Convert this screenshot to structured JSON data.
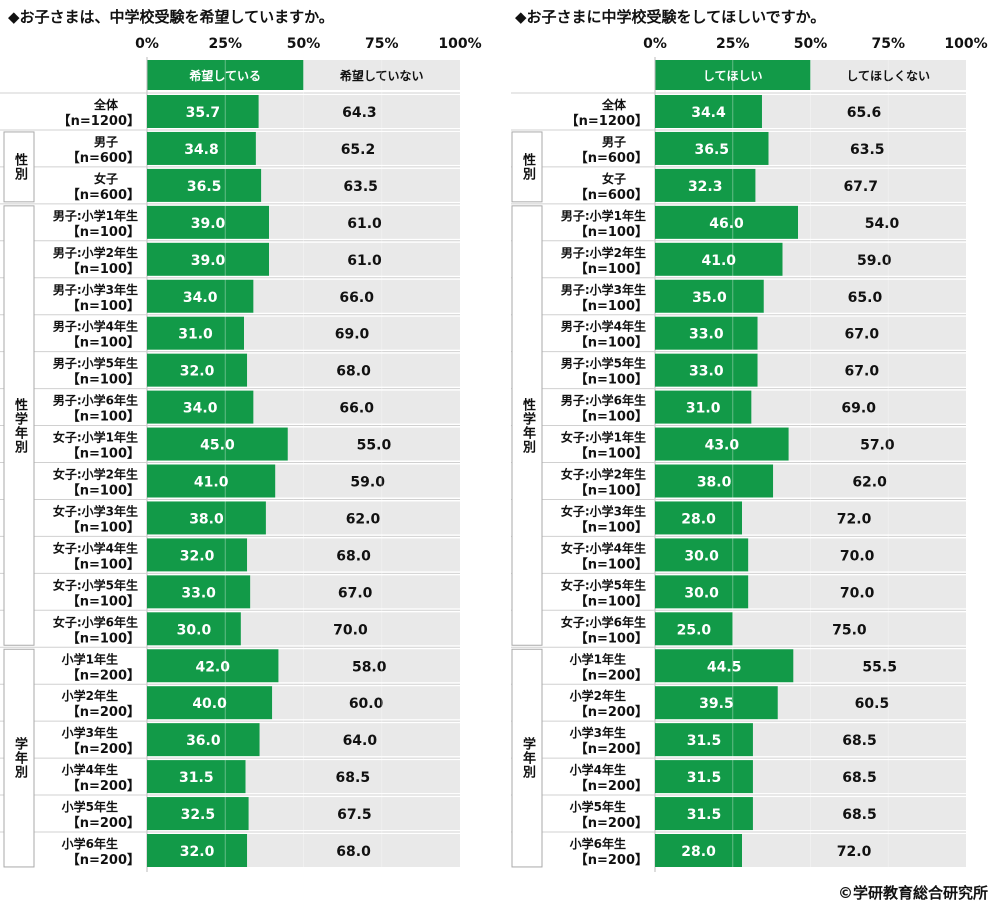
{
  "colors": {
    "yes": "#129a48",
    "no": "#e9e9e9",
    "text": "#111111",
    "bar_text": "#ffffff"
  },
  "copyright": "©学研教育総合研究所",
  "chart_data": [
    {
      "type": "bar",
      "stacked": true,
      "orientation": "horizontal",
      "title": "◆お子さまは、中学校受験を希望していますか。",
      "xlim": [
        0,
        100
      ],
      "x_ticks": [
        "0%",
        "25%",
        "50%",
        "75%",
        "100%"
      ],
      "legend_placement": "top",
      "series": [
        {
          "name": "希望している",
          "values": [
            35.7,
            34.8,
            36.5,
            39.0,
            39.0,
            34.0,
            31.0,
            32.0,
            34.0,
            45.0,
            41.0,
            38.0,
            32.0,
            33.0,
            30.0,
            42.0,
            40.0,
            36.0,
            31.5,
            32.5,
            32.0
          ]
        },
        {
          "name": "希望していない",
          "values": [
            64.3,
            65.2,
            63.5,
            61.0,
            61.0,
            66.0,
            69.0,
            68.0,
            66.0,
            55.0,
            59.0,
            62.0,
            68.0,
            67.0,
            70.0,
            58.0,
            60.0,
            64.0,
            68.5,
            67.5,
            68.0
          ]
        }
      ]
    },
    {
      "type": "bar",
      "stacked": true,
      "orientation": "horizontal",
      "title": "◆お子さまに中学校受験をしてほしいですか。",
      "xlim": [
        0,
        100
      ],
      "x_ticks": [
        "0%",
        "25%",
        "50%",
        "75%",
        "100%"
      ],
      "legend_placement": "top",
      "series": [
        {
          "name": "してほしい",
          "values": [
            34.4,
            36.5,
            32.3,
            46.0,
            41.0,
            35.0,
            33.0,
            33.0,
            31.0,
            43.0,
            38.0,
            28.0,
            30.0,
            30.0,
            25.0,
            44.5,
            39.5,
            31.5,
            31.5,
            31.5,
            28.0
          ]
        },
        {
          "name": "してほしくない",
          "values": [
            65.6,
            63.5,
            67.7,
            54.0,
            59.0,
            65.0,
            67.0,
            67.0,
            69.0,
            57.0,
            62.0,
            72.0,
            70.0,
            70.0,
            75.0,
            55.5,
            60.5,
            68.5,
            68.5,
            68.5,
            72.0
          ]
        }
      ]
    }
  ],
  "categories": [
    [
      "全体",
      "【n=1200】"
    ],
    [
      "男子",
      "【n=600】"
    ],
    [
      "女子",
      "【n=600】"
    ],
    [
      "男子:小学1年生",
      "【n=100】"
    ],
    [
      "男子:小学2年生",
      "【n=100】"
    ],
    [
      "男子:小学3年生",
      "【n=100】"
    ],
    [
      "男子:小学4年生",
      "【n=100】"
    ],
    [
      "男子:小学5年生",
      "【n=100】"
    ],
    [
      "男子:小学6年生",
      "【n=100】"
    ],
    [
      "女子:小学1年生",
      "【n=100】"
    ],
    [
      "女子:小学2年生",
      "【n=100】"
    ],
    [
      "女子:小学3年生",
      "【n=100】"
    ],
    [
      "女子:小学4年生",
      "【n=100】"
    ],
    [
      "女子:小学5年生",
      "【n=100】"
    ],
    [
      "女子:小学6年生",
      "【n=100】"
    ],
    [
      "小学1年生",
      "【n=200】"
    ],
    [
      "小学2年生",
      "【n=200】"
    ],
    [
      "小学3年生",
      "【n=200】"
    ],
    [
      "小学4年生",
      "【n=200】"
    ],
    [
      "小学5年生",
      "【n=200】"
    ],
    [
      "小学6年生",
      "【n=200】"
    ]
  ],
  "groups": [
    {
      "label": "性別",
      "rows": [
        1,
        2
      ]
    },
    {
      "label": "性学年別",
      "rows": [
        3,
        14
      ]
    },
    {
      "label": "学年別",
      "rows": [
        15,
        20
      ]
    }
  ]
}
